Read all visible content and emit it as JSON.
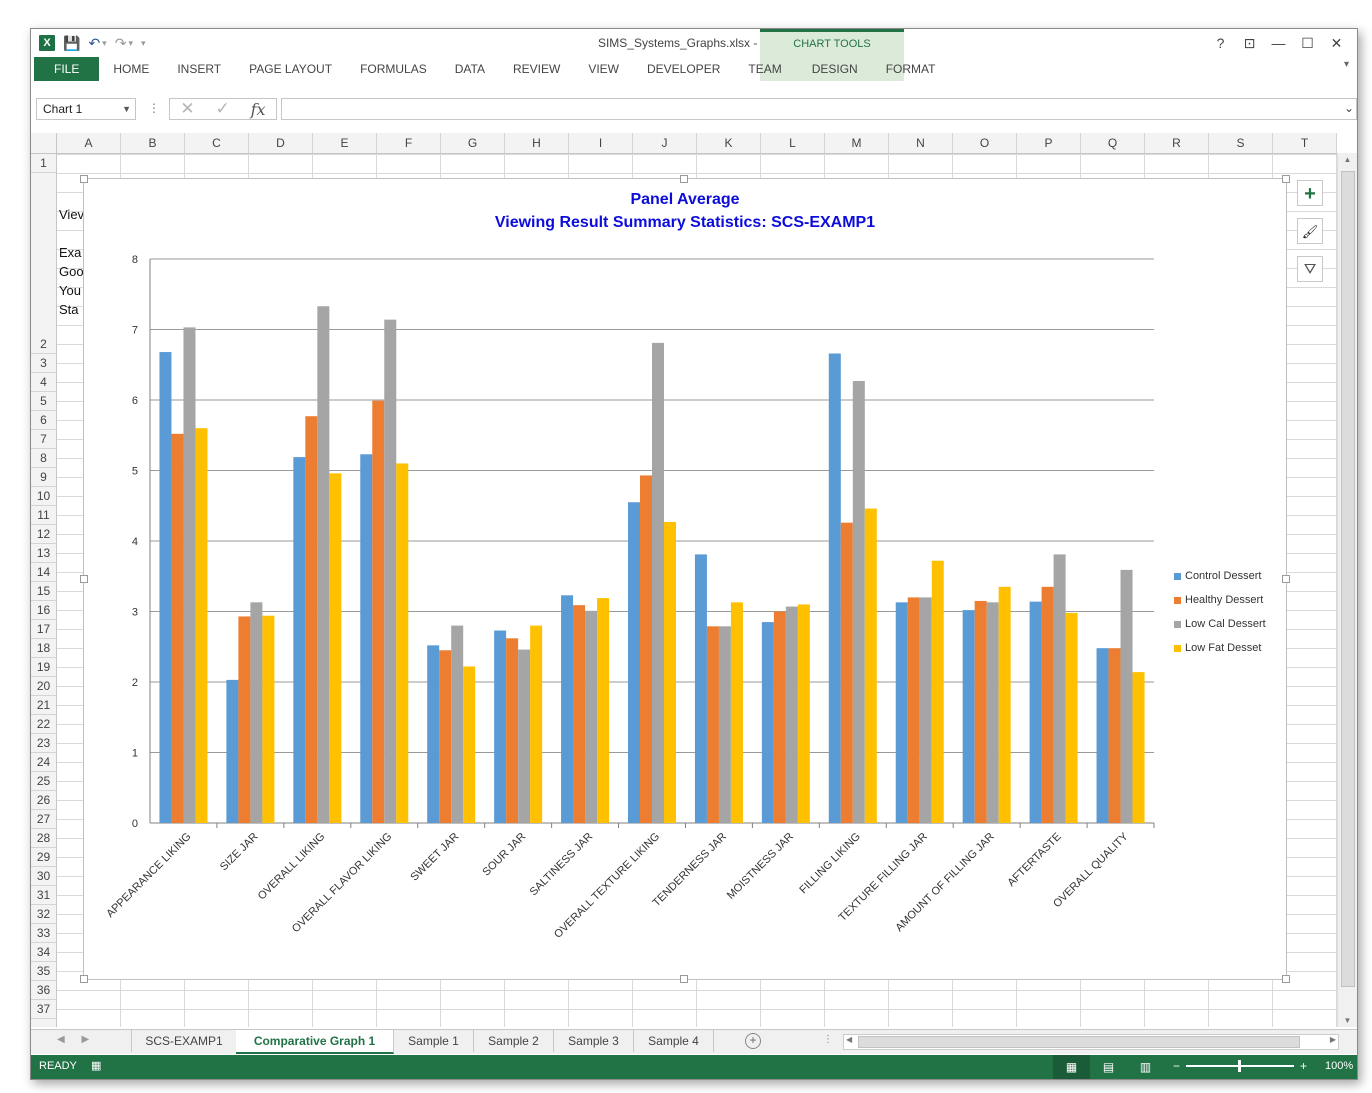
{
  "window": {
    "title": "SIMS_Systems_Graphs.xlsx - Excel"
  },
  "title_controls": {
    "help": "?",
    "restore_ribbon": "⊡",
    "minimize": "—",
    "maximize": "☐",
    "close": "✕"
  },
  "quick_access": {
    "save": "💾",
    "undo": "↶",
    "undo_dd": "▾",
    "redo": "↷",
    "redo_dd": "▾",
    "customize": "▾"
  },
  "ribbon": {
    "tabs": [
      "FILE",
      "HOME",
      "INSERT",
      "PAGE LAYOUT",
      "FORMULAS",
      "DATA",
      "REVIEW",
      "VIEW",
      "DEVELOPER",
      "TEAM"
    ],
    "context_group": "CHART TOOLS",
    "context_tabs": [
      "DESIGN",
      "FORMAT"
    ]
  },
  "formula_bar": {
    "name_box": "Chart 1",
    "formula": ""
  },
  "columns": [
    "A",
    "B",
    "C",
    "D",
    "E",
    "F",
    "G",
    "H",
    "I",
    "J",
    "K",
    "L",
    "M",
    "N",
    "O",
    "P",
    "Q",
    "R",
    "S",
    "T"
  ],
  "rows": [
    "1",
    "2",
    "3",
    "4",
    "5",
    "6",
    "7",
    "8",
    "9",
    "10",
    "11",
    "12",
    "13",
    "14",
    "15",
    "16",
    "17",
    "18",
    "19",
    "20",
    "21",
    "22",
    "23",
    "24",
    "25",
    "26",
    "27",
    "28",
    "29",
    "30",
    "31",
    "32",
    "33",
    "34",
    "35",
    "36",
    "37"
  ],
  "cell_peeks": [
    "Viev",
    "Exa",
    "Goo",
    "You",
    "Sta"
  ],
  "chart": {
    "side_buttons": {
      "elements": "+",
      "styles": "🖌",
      "filter": "⛛"
    }
  },
  "chart_data": {
    "type": "bar",
    "title": "Panel Average",
    "subtitle": "Viewing Result Summary Statistics: SCS-EXAMP1",
    "categories": [
      "APPEARANCE LIKING",
      "SIZE JAR",
      "OVERALL LIKING",
      "OVERALL FLAVOR LIKING",
      "SWEET JAR",
      "SOUR JAR",
      "SALTINESS JAR",
      "OVERALL TEXTURE LIKING",
      "TENDERNESS JAR",
      "MOISTNESS JAR",
      "FILLING LIKING",
      "TEXTURE FILLING JAR",
      "AMOUNT OF FILLING JAR",
      "AFTERTASTE",
      "OVERALL QUALITY"
    ],
    "series": [
      {
        "name": "Control Dessert",
        "color": "#5b9bd5",
        "values": [
          6.68,
          2.03,
          5.19,
          5.23,
          2.52,
          2.73,
          3.23,
          4.55,
          3.81,
          2.85,
          6.66,
          3.13,
          3.02,
          3.14,
          2.48
        ]
      },
      {
        "name": "Healthy Dessert",
        "color": "#ed7d31",
        "values": [
          5.52,
          2.93,
          5.77,
          5.99,
          2.45,
          2.62,
          3.09,
          4.93,
          2.79,
          3.0,
          4.26,
          3.2,
          3.15,
          3.35,
          2.48
        ]
      },
      {
        "name": "Low Cal Dessert",
        "color": "#a5a5a5",
        "values": [
          7.03,
          3.13,
          7.33,
          7.14,
          2.8,
          2.46,
          3.01,
          6.81,
          2.79,
          3.07,
          6.27,
          3.2,
          3.13,
          3.81,
          3.59
        ]
      },
      {
        "name": "Low Fat Desset",
        "color": "#ffc000",
        "values": [
          5.6,
          2.94,
          4.96,
          5.1,
          2.22,
          2.8,
          3.19,
          4.27,
          3.13,
          3.1,
          4.46,
          3.72,
          3.35,
          2.98,
          2.14
        ]
      }
    ],
    "ylim": [
      0,
      8
    ],
    "yticks": [
      0,
      1,
      2,
      3,
      4,
      5,
      6,
      7,
      8
    ],
    "grid": true,
    "legend": "right"
  },
  "sheets": {
    "tabs": [
      "SCS-EXAMP1",
      "Comparative Graph 1",
      "Sample 1",
      "Sample 2",
      "Sample 3",
      "Sample 4"
    ],
    "active": "Comparative Graph 1"
  },
  "status": {
    "state": "READY",
    "zoom": "100%"
  }
}
